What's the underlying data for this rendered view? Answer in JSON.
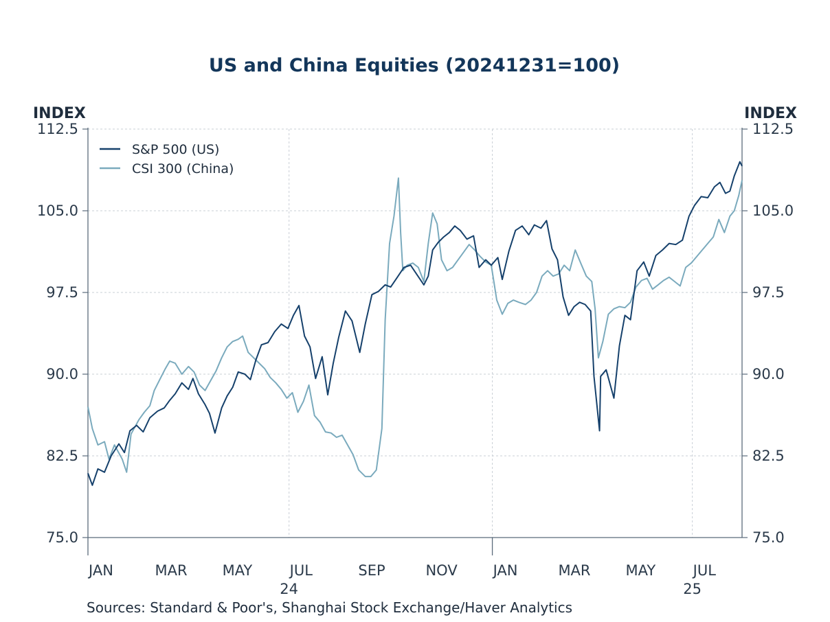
{
  "chart_data": {
    "type": "line",
    "title": "US and China Equities (20241231=100)",
    "ylabel_left": "INDEX",
    "ylabel_right": "INDEX",
    "ylim": [
      75,
      112.5
    ],
    "yticks": [
      "112.5",
      "105.0",
      "97.5",
      "90.0",
      "82.5",
      "75.0"
    ],
    "yticks_right": [
      "112.5",
      "105.0",
      "97.5",
      "90.0",
      "82.5",
      "75.0"
    ],
    "xlim": [
      "2024-01-01",
      "2025-08-15"
    ],
    "x_month_labels": [
      {
        "label": "JAN",
        "date": "2024-01-01"
      },
      {
        "label": "MAR",
        "date": "2024-03-01"
      },
      {
        "label": "MAY",
        "date": "2024-05-01"
      },
      {
        "label": "JUL",
        "date": "2024-07-01"
      },
      {
        "label": "SEP",
        "date": "2024-09-01"
      },
      {
        "label": "NOV",
        "date": "2024-11-01"
      },
      {
        "label": "JAN",
        "date": "2025-01-01"
      },
      {
        "label": "MAR",
        "date": "2025-03-01"
      },
      {
        "label": "MAY",
        "date": "2025-05-01"
      },
      {
        "label": "JUL",
        "date": "2025-07-01"
      }
    ],
    "x_year_labels": [
      {
        "label": "24",
        "date": "2024-07-01"
      },
      {
        "label": "25",
        "date": "2025-07-01"
      }
    ],
    "grid": true,
    "legend_position": "top-left",
    "series": [
      {
        "name": "S&P 500 (US)",
        "color": "#15406b",
        "points": [
          [
            "2024-01-01",
            80.9
          ],
          [
            "2024-01-05",
            79.8
          ],
          [
            "2024-01-10",
            81.3
          ],
          [
            "2024-01-16",
            81.0
          ],
          [
            "2024-01-22",
            82.5
          ],
          [
            "2024-01-29",
            83.6
          ],
          [
            "2024-02-03",
            82.8
          ],
          [
            "2024-02-08",
            84.8
          ],
          [
            "2024-02-14",
            85.3
          ],
          [
            "2024-02-20",
            84.7
          ],
          [
            "2024-02-26",
            86.0
          ],
          [
            "2024-03-04",
            86.6
          ],
          [
            "2024-03-10",
            86.9
          ],
          [
            "2024-03-15",
            87.6
          ],
          [
            "2024-03-20",
            88.2
          ],
          [
            "2024-03-26",
            89.2
          ],
          [
            "2024-04-01",
            88.6
          ],
          [
            "2024-04-05",
            89.6
          ],
          [
            "2024-04-10",
            88.2
          ],
          [
            "2024-04-16",
            87.2
          ],
          [
            "2024-04-20",
            86.4
          ],
          [
            "2024-04-25",
            84.6
          ],
          [
            "2024-05-01",
            86.9
          ],
          [
            "2024-05-06",
            88.0
          ],
          [
            "2024-05-11",
            88.8
          ],
          [
            "2024-05-16",
            90.2
          ],
          [
            "2024-05-22",
            90.0
          ],
          [
            "2024-05-27",
            89.5
          ],
          [
            "2024-06-01",
            91.3
          ],
          [
            "2024-06-06",
            92.7
          ],
          [
            "2024-06-12",
            92.9
          ],
          [
            "2024-06-18",
            93.9
          ],
          [
            "2024-06-24",
            94.6
          ],
          [
            "2024-06-30",
            94.2
          ],
          [
            "2024-07-05",
            95.4
          ],
          [
            "2024-07-10",
            96.3
          ],
          [
            "2024-07-15",
            93.5
          ],
          [
            "2024-07-20",
            92.5
          ],
          [
            "2024-07-25",
            89.6
          ],
          [
            "2024-07-31",
            91.6
          ],
          [
            "2024-08-05",
            88.1
          ],
          [
            "2024-08-10",
            91.0
          ],
          [
            "2024-08-15",
            93.4
          ],
          [
            "2024-08-21",
            95.8
          ],
          [
            "2024-08-27",
            94.9
          ],
          [
            "2024-09-03",
            92.0
          ],
          [
            "2024-09-08",
            94.6
          ],
          [
            "2024-09-14",
            97.3
          ],
          [
            "2024-09-20",
            97.6
          ],
          [
            "2024-09-26",
            98.2
          ],
          [
            "2024-10-01",
            98.0
          ],
          [
            "2024-10-07",
            98.9
          ],
          [
            "2024-10-13",
            99.8
          ],
          [
            "2024-10-19",
            100.0
          ],
          [
            "2024-10-25",
            99.1
          ],
          [
            "2024-10-31",
            98.2
          ],
          [
            "2024-11-04",
            99.0
          ],
          [
            "2024-11-08",
            101.4
          ],
          [
            "2024-11-13",
            102.1
          ],
          [
            "2024-11-18",
            102.6
          ],
          [
            "2024-11-23",
            103.0
          ],
          [
            "2024-11-28",
            103.6
          ],
          [
            "2024-12-03",
            103.2
          ],
          [
            "2024-12-09",
            102.4
          ],
          [
            "2024-12-15",
            102.7
          ],
          [
            "2024-12-20",
            99.8
          ],
          [
            "2024-12-26",
            100.5
          ],
          [
            "2024-12-31",
            100.0
          ],
          [
            "2025-01-06",
            100.7
          ],
          [
            "2025-01-10",
            98.7
          ],
          [
            "2025-01-16",
            101.3
          ],
          [
            "2025-01-22",
            103.2
          ],
          [
            "2025-01-28",
            103.6
          ],
          [
            "2025-02-03",
            102.8
          ],
          [
            "2025-02-08",
            103.7
          ],
          [
            "2025-02-14",
            103.4
          ],
          [
            "2025-02-19",
            104.1
          ],
          [
            "2025-02-24",
            101.5
          ],
          [
            "2025-03-01",
            100.5
          ],
          [
            "2025-03-06",
            97.1
          ],
          [
            "2025-03-11",
            95.4
          ],
          [
            "2025-03-16",
            96.2
          ],
          [
            "2025-03-21",
            96.6
          ],
          [
            "2025-03-26",
            96.4
          ],
          [
            "2025-03-31",
            95.8
          ],
          [
            "2025-04-03",
            89.8
          ],
          [
            "2025-04-08",
            84.8
          ],
          [
            "2025-04-09",
            89.8
          ],
          [
            "2025-04-14",
            90.4
          ],
          [
            "2025-04-21",
            87.8
          ],
          [
            "2025-04-26",
            92.6
          ],
          [
            "2025-05-01",
            95.4
          ],
          [
            "2025-05-06",
            95.0
          ],
          [
            "2025-05-12",
            99.5
          ],
          [
            "2025-05-18",
            100.3
          ],
          [
            "2025-05-23",
            99.0
          ],
          [
            "2025-05-29",
            100.9
          ],
          [
            "2025-06-04",
            101.4
          ],
          [
            "2025-06-10",
            102.0
          ],
          [
            "2025-06-16",
            101.9
          ],
          [
            "2025-06-22",
            102.3
          ],
          [
            "2025-06-28",
            104.5
          ],
          [
            "2025-07-03",
            105.5
          ],
          [
            "2025-07-09",
            106.3
          ],
          [
            "2025-07-15",
            106.2
          ],
          [
            "2025-07-21",
            107.2
          ],
          [
            "2025-07-26",
            107.6
          ],
          [
            "2025-07-31",
            106.6
          ],
          [
            "2025-08-04",
            106.8
          ],
          [
            "2025-08-08",
            108.2
          ],
          [
            "2025-08-13",
            109.5
          ],
          [
            "2025-08-15",
            109.1
          ]
        ]
      },
      {
        "name": "CSI 300 (China)",
        "color": "#7aaabd",
        "points": [
          [
            "2024-01-01",
            87.0
          ],
          [
            "2024-01-05",
            85.0
          ],
          [
            "2024-01-10",
            83.5
          ],
          [
            "2024-01-16",
            83.8
          ],
          [
            "2024-01-20",
            82.2
          ],
          [
            "2024-01-25",
            83.5
          ],
          [
            "2024-02-01",
            82.2
          ],
          [
            "2024-02-05",
            81.0
          ],
          [
            "2024-02-09",
            84.5
          ],
          [
            "2024-02-16",
            85.8
          ],
          [
            "2024-02-21",
            86.5
          ],
          [
            "2024-02-26",
            87.1
          ],
          [
            "2024-03-01",
            88.5
          ],
          [
            "2024-03-06",
            89.5
          ],
          [
            "2024-03-11",
            90.5
          ],
          [
            "2024-03-15",
            91.2
          ],
          [
            "2024-03-20",
            91.0
          ],
          [
            "2024-03-26",
            90.0
          ],
          [
            "2024-04-01",
            90.7
          ],
          [
            "2024-04-06",
            90.2
          ],
          [
            "2024-04-11",
            89.0
          ],
          [
            "2024-04-16",
            88.5
          ],
          [
            "2024-04-21",
            89.4
          ],
          [
            "2024-04-26",
            90.3
          ],
          [
            "2024-05-01",
            91.5
          ],
          [
            "2024-05-06",
            92.5
          ],
          [
            "2024-05-11",
            93.0
          ],
          [
            "2024-05-16",
            93.2
          ],
          [
            "2024-05-20",
            93.5
          ],
          [
            "2024-05-25",
            92.0
          ],
          [
            "2024-05-30",
            91.5
          ],
          [
            "2024-06-04",
            91.0
          ],
          [
            "2024-06-09",
            90.5
          ],
          [
            "2024-06-14",
            89.7
          ],
          [
            "2024-06-19",
            89.2
          ],
          [
            "2024-06-24",
            88.6
          ],
          [
            "2024-06-29",
            87.8
          ],
          [
            "2024-07-04",
            88.3
          ],
          [
            "2024-07-09",
            86.5
          ],
          [
            "2024-07-14",
            87.5
          ],
          [
            "2024-07-19",
            89.0
          ],
          [
            "2024-07-24",
            86.2
          ],
          [
            "2024-07-29",
            85.6
          ],
          [
            "2024-08-03",
            84.7
          ],
          [
            "2024-08-08",
            84.6
          ],
          [
            "2024-08-13",
            84.2
          ],
          [
            "2024-08-18",
            84.4
          ],
          [
            "2024-08-23",
            83.5
          ],
          [
            "2024-08-28",
            82.6
          ],
          [
            "2024-09-02",
            81.2
          ],
          [
            "2024-09-08",
            80.6
          ],
          [
            "2024-09-13",
            80.6
          ],
          [
            "2024-09-18",
            81.2
          ],
          [
            "2024-09-23",
            85.0
          ],
          [
            "2024-09-26",
            95.0
          ],
          [
            "2024-09-30",
            102.0
          ],
          [
            "2024-10-04",
            104.5
          ],
          [
            "2024-10-08",
            108.0
          ],
          [
            "2024-10-10",
            103.0
          ],
          [
            "2024-10-12",
            99.5
          ],
          [
            "2024-10-16",
            100.0
          ],
          [
            "2024-10-21",
            100.2
          ],
          [
            "2024-10-26",
            99.8
          ],
          [
            "2024-10-31",
            98.5
          ],
          [
            "2024-11-04",
            102.0
          ],
          [
            "2024-11-08",
            104.8
          ],
          [
            "2024-11-12",
            103.8
          ],
          [
            "2024-11-16",
            100.5
          ],
          [
            "2024-11-21",
            99.5
          ],
          [
            "2024-11-26",
            99.8
          ],
          [
            "2024-12-01",
            100.5
          ],
          [
            "2024-12-06",
            101.2
          ],
          [
            "2024-12-11",
            101.9
          ],
          [
            "2024-12-16",
            101.4
          ],
          [
            "2024-12-21",
            100.8
          ],
          [
            "2024-12-26",
            100.3
          ],
          [
            "2024-12-31",
            100.0
          ],
          [
            "2025-01-05",
            96.8
          ],
          [
            "2025-01-10",
            95.5
          ],
          [
            "2025-01-15",
            96.5
          ],
          [
            "2025-01-20",
            96.8
          ],
          [
            "2025-01-25",
            96.6
          ],
          [
            "2025-01-31",
            96.4
          ],
          [
            "2025-02-05",
            96.8
          ],
          [
            "2025-02-10",
            97.5
          ],
          [
            "2025-02-15",
            99.0
          ],
          [
            "2025-02-20",
            99.5
          ],
          [
            "2025-02-25",
            99.0
          ],
          [
            "2025-03-02",
            99.2
          ],
          [
            "2025-03-07",
            100.0
          ],
          [
            "2025-03-12",
            99.5
          ],
          [
            "2025-03-17",
            101.4
          ],
          [
            "2025-03-22",
            100.2
          ],
          [
            "2025-03-27",
            99.0
          ],
          [
            "2025-04-01",
            98.5
          ],
          [
            "2025-04-04",
            96.0
          ],
          [
            "2025-04-07",
            91.5
          ],
          [
            "2025-04-11",
            93.0
          ],
          [
            "2025-04-16",
            95.5
          ],
          [
            "2025-04-21",
            96.0
          ],
          [
            "2025-04-26",
            96.2
          ],
          [
            "2025-05-01",
            96.1
          ],
          [
            "2025-05-06",
            96.6
          ],
          [
            "2025-05-11",
            98.0
          ],
          [
            "2025-05-16",
            98.6
          ],
          [
            "2025-05-21",
            98.8
          ],
          [
            "2025-05-26",
            97.8
          ],
          [
            "2025-05-31",
            98.2
          ],
          [
            "2025-06-05",
            98.6
          ],
          [
            "2025-06-10",
            98.9
          ],
          [
            "2025-06-15",
            98.5
          ],
          [
            "2025-06-20",
            98.1
          ],
          [
            "2025-06-25",
            99.8
          ],
          [
            "2025-06-30",
            100.2
          ],
          [
            "2025-07-05",
            100.8
          ],
          [
            "2025-07-10",
            101.4
          ],
          [
            "2025-07-15",
            102.0
          ],
          [
            "2025-07-20",
            102.6
          ],
          [
            "2025-07-25",
            104.2
          ],
          [
            "2025-07-30",
            103.0
          ],
          [
            "2025-08-04",
            104.5
          ],
          [
            "2025-08-08",
            105.0
          ],
          [
            "2025-08-12",
            106.4
          ],
          [
            "2025-08-15",
            107.8
          ]
        ]
      }
    ]
  },
  "sources": "Sources:  Standard & Poor's, Shanghai Stock Exchange/Haver Analytics"
}
